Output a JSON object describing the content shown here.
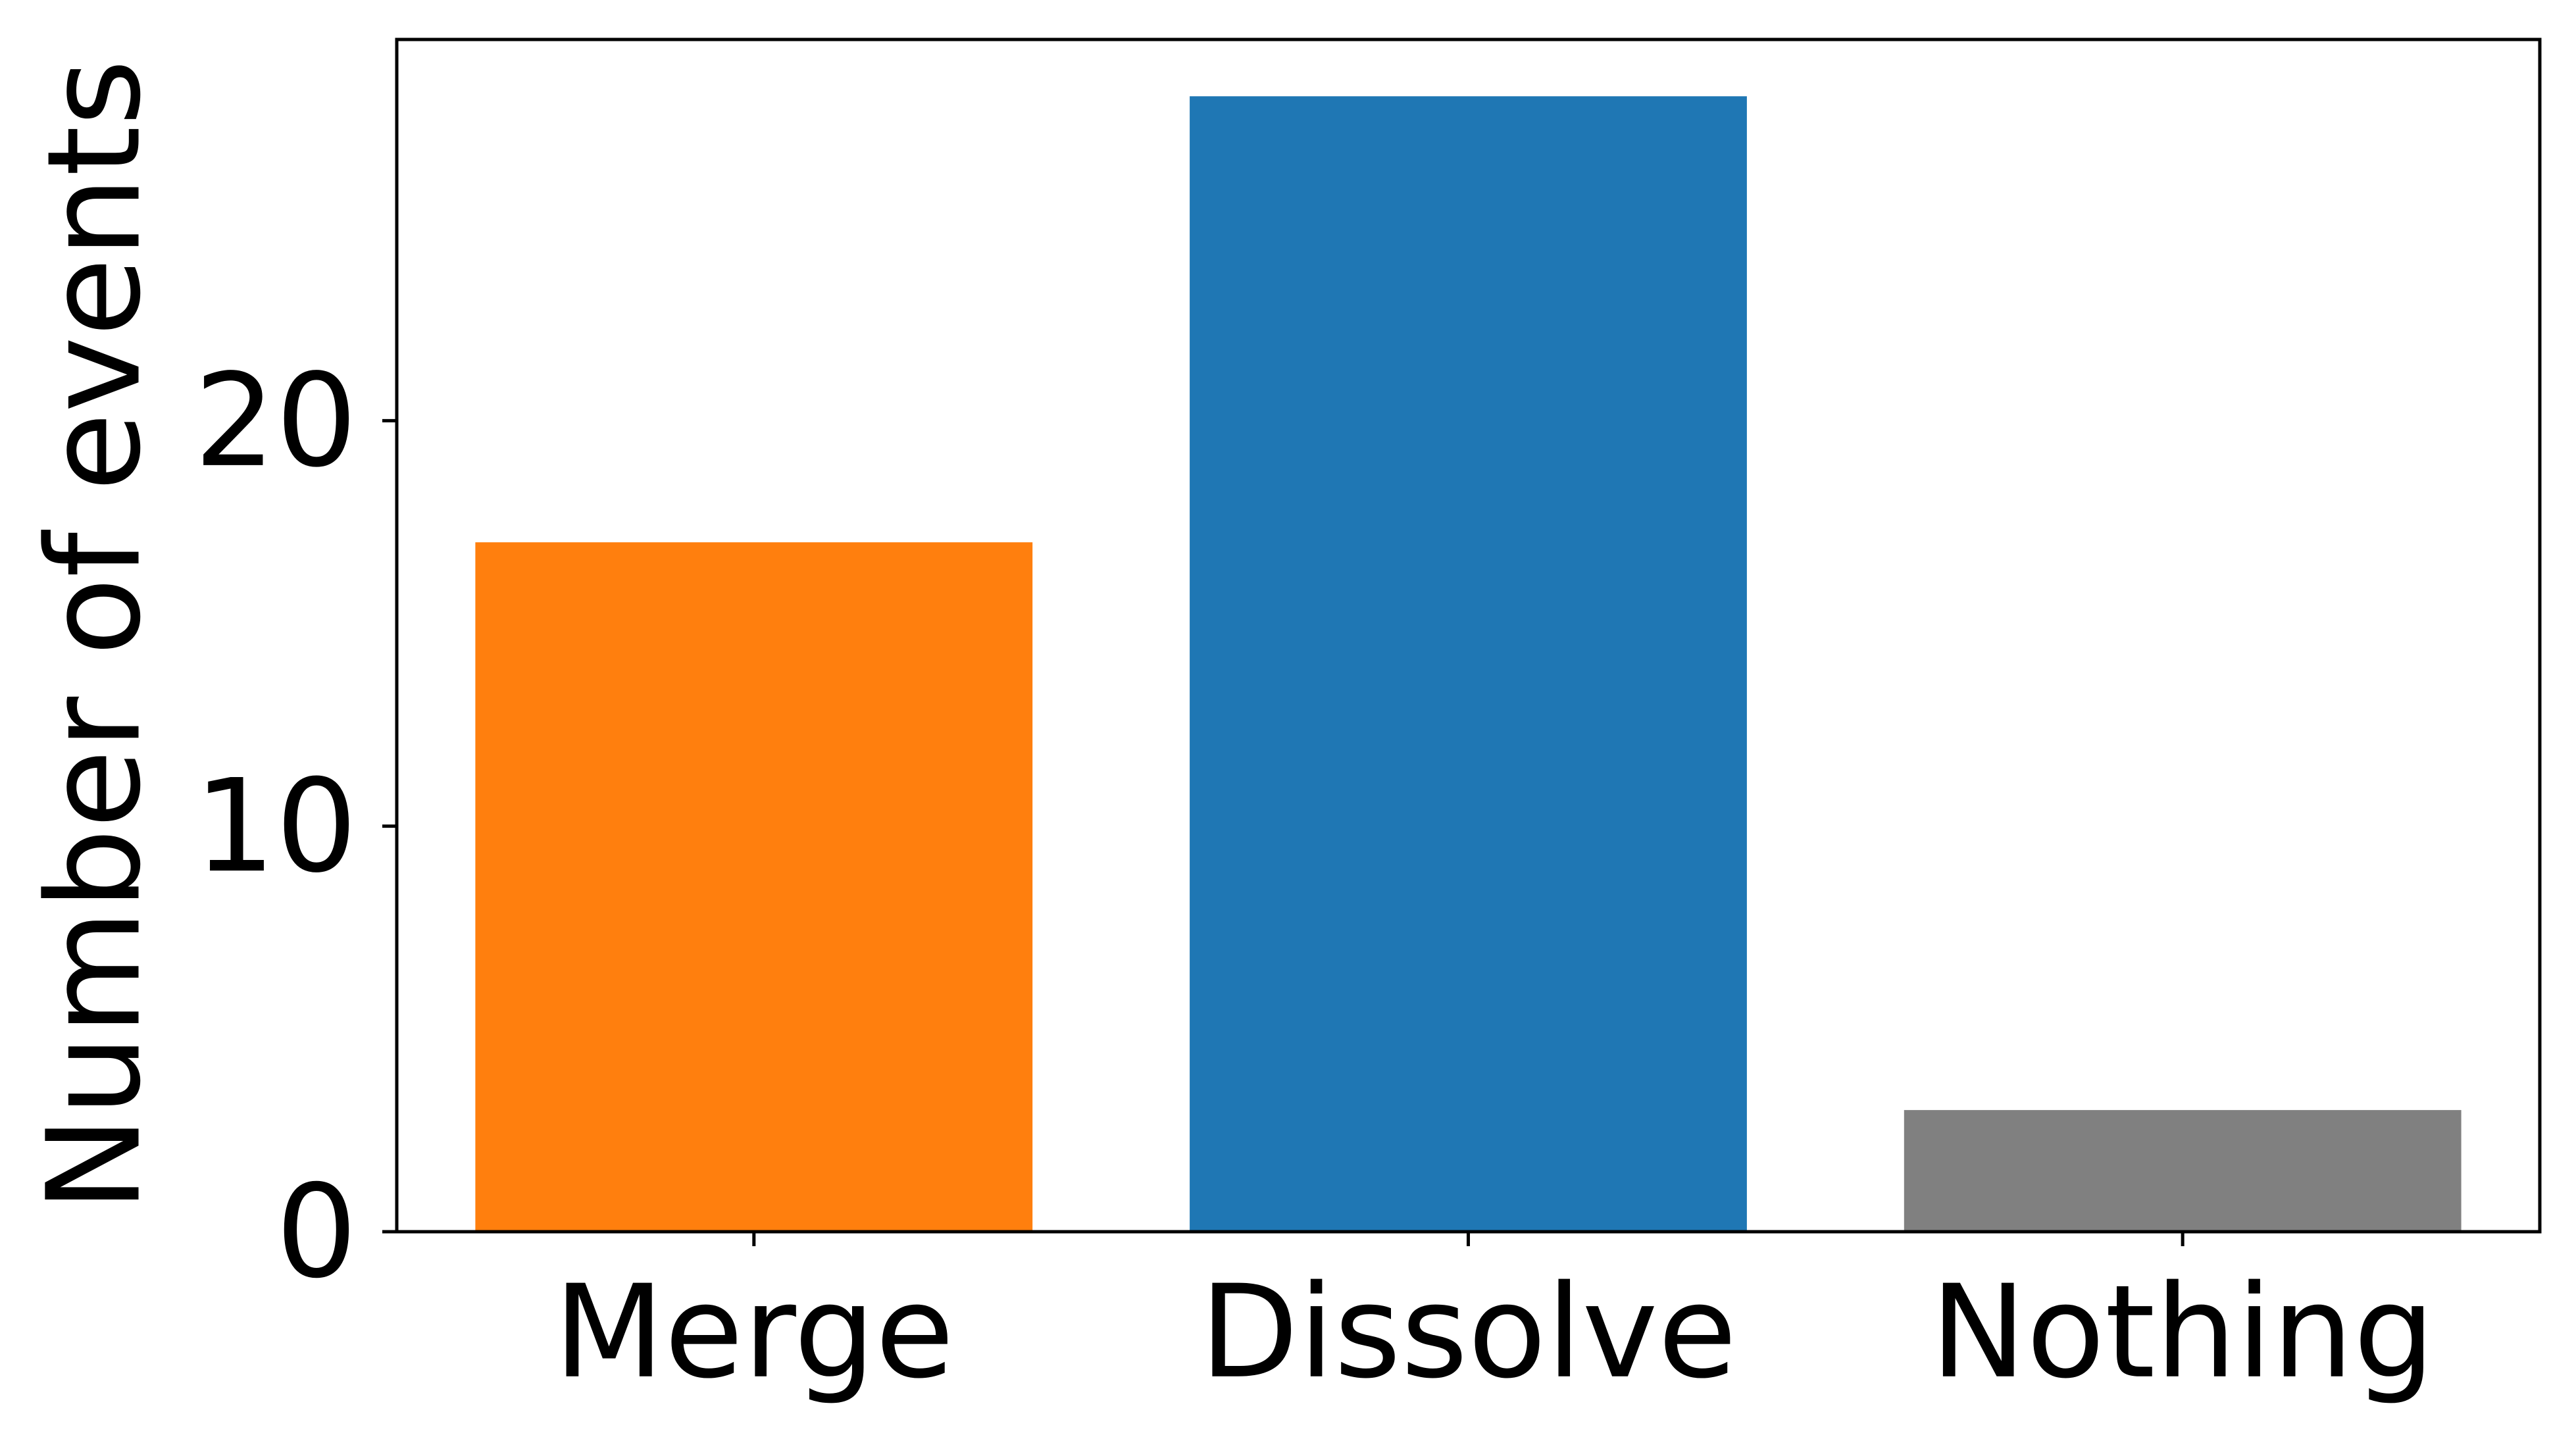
{
  "chart_data": {
    "type": "bar",
    "title": "",
    "xlabel": "",
    "ylabel": "Number of events",
    "categories": [
      "Merge",
      "Dissolve",
      "Nothing"
    ],
    "values": [
      17,
      28,
      3
    ],
    "colors": [
      "#ff7f0e",
      "#1f77b4",
      "#808080"
    ],
    "ylim": [
      0,
      29.4
    ],
    "yticks": [
      0,
      10,
      20
    ],
    "grid": false,
    "legend": "none"
  }
}
